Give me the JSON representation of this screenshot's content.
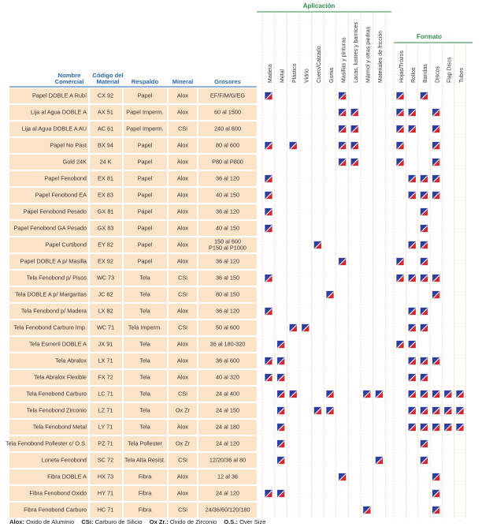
{
  "table": {
    "groups": {
      "aplicacion": "Aplicación",
      "formato": "Formato"
    },
    "headers": [
      [
        "Nombre",
        "Comercial"
      ],
      [
        "Código del",
        "Material"
      ],
      [
        "Respaldo"
      ],
      [
        "Mineral"
      ],
      [
        "Grosores"
      ]
    ],
    "aplicacion_columns": [
      "Madera",
      "Metal",
      "Plástico",
      "Vidrio",
      "Cuero/Calzado",
      "Goma",
      "Masillas y pinturas",
      "Lacas, lustres y barnices",
      "Mármol y otras piedras",
      "Materiales de fricción"
    ],
    "formato_columns": [
      "Hojas/Trozos",
      "Rollos",
      "Bandas",
      "Discos",
      "Flap Discs",
      "Tubos"
    ],
    "rows": [
      {
        "nombre": "Papel DOBLE A Rubí",
        "codigo": "CX 92",
        "respaldo": "Papel",
        "mineral": "Alox",
        "grosores": "EF/F/M/G/EG",
        "aplicacion": [
          true,
          false,
          false,
          false,
          false,
          false,
          true,
          false,
          false,
          false
        ],
        "formato": [
          true,
          false,
          true,
          false,
          false,
          false
        ]
      },
      {
        "nombre": "Lija al Agua DOBLE A",
        "codigo": "AX 51",
        "respaldo": "Papel Imperm.",
        "mineral": "Alox",
        "grosores": "60 al 1500",
        "aplicacion": [
          false,
          false,
          false,
          false,
          false,
          false,
          true,
          true,
          false,
          false
        ],
        "formato": [
          true,
          true,
          false,
          true,
          false,
          false
        ]
      },
      {
        "nombre": "Lija al Agua DOBLE A AU",
        "codigo": "AC 61",
        "respaldo": "Papel Imperm.",
        "mineral": "CSi",
        "grosores": "240 al 600",
        "aplicacion": [
          false,
          false,
          false,
          false,
          false,
          false,
          true,
          true,
          false,
          false
        ],
        "formato": [
          true,
          true,
          false,
          true,
          false,
          false
        ]
      },
      {
        "nombre": "Papel No Past",
        "codigo": "BX 94",
        "respaldo": "Papel",
        "mineral": "Alox",
        "grosores": "80 al 600",
        "aplicacion": [
          true,
          false,
          true,
          false,
          false,
          false,
          true,
          true,
          false,
          false
        ],
        "formato": [
          true,
          false,
          false,
          true,
          false,
          false
        ]
      },
      {
        "nombre": "Gold 24K",
        "codigo": "24 K",
        "respaldo": "Papel",
        "mineral": "Alox",
        "grosores": "P80 al P800",
        "aplicacion": [
          false,
          false,
          false,
          false,
          false,
          false,
          true,
          true,
          false,
          false
        ],
        "formato": [
          true,
          false,
          false,
          true,
          false,
          false
        ]
      },
      {
        "nombre": "Papel Fenobond",
        "codigo": "EX 81",
        "respaldo": "Papel",
        "mineral": "Alox",
        "grosores": "36 al 120",
        "aplicacion": [
          true,
          false,
          false,
          false,
          false,
          false,
          false,
          false,
          false,
          false
        ],
        "formato": [
          false,
          true,
          true,
          true,
          false,
          false
        ]
      },
      {
        "nombre": "Papel Fenobond EA",
        "codigo": "EX 83",
        "respaldo": "Papel",
        "mineral": "Alox",
        "grosores": "40 al 150",
        "aplicacion": [
          true,
          false,
          false,
          false,
          false,
          false,
          false,
          false,
          false,
          false
        ],
        "formato": [
          false,
          true,
          true,
          true,
          false,
          false
        ]
      },
      {
        "nombre": "Papel Fenobond Pesado",
        "codigo": "GX 81",
        "respaldo": "Papel",
        "mineral": "Alox",
        "grosores": "36 al 120",
        "aplicacion": [
          true,
          false,
          false,
          false,
          false,
          false,
          false,
          false,
          false,
          false
        ],
        "formato": [
          false,
          false,
          true,
          false,
          false,
          false
        ]
      },
      {
        "nombre": "Papel Fenobond GA Pesado",
        "codigo": "GX 83",
        "respaldo": "Papel",
        "mineral": "Alox",
        "grosores": "40 al 150",
        "aplicacion": [
          true,
          false,
          false,
          false,
          false,
          false,
          false,
          false,
          false,
          false
        ],
        "formato": [
          false,
          false,
          true,
          false,
          false,
          false
        ]
      },
      {
        "nombre": "Papel Curtibond",
        "codigo": "EY 82",
        "respaldo": "Papel",
        "mineral": "Alox",
        "grosores": [
          "150 al 600",
          "P150 al P1000"
        ],
        "aplicacion": [
          false,
          false,
          false,
          false,
          true,
          false,
          false,
          false,
          false,
          false
        ],
        "formato": [
          false,
          true,
          true,
          false,
          false,
          false
        ]
      },
      {
        "nombre": "Papel DOBLE A p/ Masilla",
        "codigo": "EX 92",
        "respaldo": "Papel",
        "mineral": "Alox",
        "grosores": "36 al 120",
        "aplicacion": [
          false,
          false,
          false,
          false,
          false,
          false,
          true,
          false,
          false,
          false
        ],
        "formato": [
          true,
          false,
          true,
          false,
          false,
          false
        ]
      },
      {
        "nombre": "Tela Fenobond p/ Pisos",
        "codigo": "WC 73",
        "respaldo": "Tela",
        "mineral": "CSi",
        "grosores": "36 al 150",
        "aplicacion": [
          true,
          false,
          false,
          false,
          false,
          false,
          false,
          false,
          false,
          false
        ],
        "formato": [
          true,
          true,
          true,
          true,
          false,
          false
        ]
      },
      {
        "nombre": "Tela DOBLE A p/ Margaritas",
        "codigo": "JC 82",
        "respaldo": "Tela",
        "mineral": "CSi",
        "grosores": "80 al 150",
        "aplicacion": [
          false,
          false,
          false,
          false,
          false,
          true,
          false,
          false,
          false,
          false
        ],
        "formato": [
          false,
          false,
          false,
          true,
          false,
          false
        ]
      },
      {
        "nombre": "Tela Fenobond p/ Madera",
        "codigo": "LX 82",
        "respaldo": "Tela",
        "mineral": "Alox",
        "grosores": "36 al 120",
        "aplicacion": [
          true,
          false,
          false,
          false,
          false,
          false,
          false,
          false,
          false,
          false
        ],
        "formato": [
          false,
          true,
          true,
          false,
          false,
          false
        ]
      },
      {
        "nombre": "Tela Fenobond Carburo Imp.",
        "codigo": "WC 71",
        "respaldo": "Tela Imperm.",
        "mineral": "CSi",
        "grosores": "50 al 600",
        "aplicacion": [
          false,
          false,
          true,
          true,
          false,
          false,
          false,
          false,
          false,
          false
        ],
        "formato": [
          false,
          true,
          true,
          false,
          false,
          false
        ]
      },
      {
        "nombre": "Tela Esmeril DOBLE A",
        "codigo": "JX 91",
        "respaldo": "Tela",
        "mineral": "Alox",
        "grosores": "36 al 180-320",
        "aplicacion": [
          false,
          true,
          false,
          false,
          false,
          false,
          false,
          false,
          false,
          false
        ],
        "formato": [
          true,
          true,
          false,
          false,
          false,
          false
        ]
      },
      {
        "nombre": "Tela Abralox",
        "codigo": "LX 71",
        "respaldo": "Tela",
        "mineral": "Alox",
        "grosores": "36 al 600",
        "aplicacion": [
          true,
          true,
          false,
          false,
          false,
          false,
          false,
          false,
          false,
          false
        ],
        "formato": [
          false,
          true,
          true,
          true,
          false,
          false
        ]
      },
      {
        "nombre": "Tela Abralox Flexible",
        "codigo": "FX 72",
        "respaldo": "Tela",
        "mineral": "Alox",
        "grosores": "40 al 320",
        "aplicacion": [
          true,
          true,
          false,
          false,
          false,
          false,
          false,
          false,
          false,
          false
        ],
        "formato": [
          false,
          true,
          true,
          false,
          false,
          false
        ]
      },
      {
        "nombre": "Tela Fenobond Carburo",
        "codigo": "LC 71",
        "respaldo": "Tela",
        "mineral": "CSi",
        "grosores": "24 al 400",
        "aplicacion": [
          false,
          true,
          true,
          false,
          false,
          true,
          false,
          false,
          true,
          true
        ],
        "formato": [
          false,
          true,
          true,
          true,
          true,
          true
        ]
      },
      {
        "nombre": "Tela Fenobond Zirconio",
        "codigo": "LZ 71",
        "respaldo": "Tela",
        "mineral": "Ox Zr",
        "grosores": "24 al 150",
        "aplicacion": [
          false,
          true,
          false,
          false,
          true,
          true,
          false,
          false,
          false,
          false
        ],
        "formato": [
          false,
          true,
          true,
          true,
          true,
          true
        ]
      },
      {
        "nombre": "Tela Fenobond Metal",
        "codigo": "LY 71",
        "respaldo": "Tela",
        "mineral": "Alox",
        "grosores": "24 al 180",
        "aplicacion": [
          false,
          true,
          false,
          false,
          false,
          false,
          false,
          false,
          false,
          false
        ],
        "formato": [
          false,
          true,
          true,
          true,
          true,
          true
        ]
      },
      {
        "nombre": "Tela Fenobond Pollester c/ O.S.",
        "codigo": "PZ 71",
        "respaldo": "Tela Pollester",
        "mineral": "Ox Zr",
        "grosores": "24 al 120",
        "aplicacion": [
          false,
          true,
          false,
          false,
          false,
          false,
          false,
          false,
          false,
          false
        ],
        "formato": [
          false,
          false,
          true,
          false,
          false,
          false
        ]
      },
      {
        "nombre": "Loneta Fenobond",
        "codigo": "SC 72",
        "respaldo": "Tela Alta Resist.",
        "mineral": "CSi",
        "grosores": "12/20/36 al 80",
        "aplicacion": [
          false,
          true,
          false,
          false,
          false,
          false,
          false,
          false,
          false,
          true
        ],
        "formato": [
          false,
          false,
          true,
          false,
          false,
          false
        ]
      },
      {
        "nombre": "Fibra DOBLE A",
        "codigo": "HX 73",
        "respaldo": "Fibra",
        "mineral": "Alox",
        "grosores": "12 al 36",
        "aplicacion": [
          false,
          false,
          false,
          false,
          false,
          false,
          true,
          false,
          false,
          false
        ],
        "formato": [
          false,
          false,
          false,
          true,
          false,
          false
        ]
      },
      {
        "nombre": "Fibra Fenobond Oxido",
        "codigo": "HY 71",
        "respaldo": "Fibra",
        "mineral": "Alox",
        "grosores": "24 al 120",
        "aplicacion": [
          true,
          true,
          false,
          false,
          false,
          false,
          false,
          false,
          false,
          false
        ],
        "formato": [
          false,
          false,
          false,
          true,
          false,
          false
        ]
      },
      {
        "nombre": "Fibra Fenobond Carburo",
        "codigo": "HC 71",
        "respaldo": "Fibra",
        "mineral": "CSi",
        "grosores": "24/36/60/120/180",
        "aplicacion": [
          false,
          false,
          false,
          false,
          false,
          false,
          false,
          false,
          true,
          false
        ],
        "formato": [
          false,
          false,
          false,
          true,
          false,
          false
        ]
      }
    ]
  },
  "footer": [
    {
      "abbr": "Alox:",
      "text": "Oxido de Aluminio"
    },
    {
      "abbr": "CSi:",
      "text": "Carburo de Silicio"
    },
    {
      "abbr": "Ox Zr.:",
      "text": "Oxido de Zirconio"
    },
    {
      "abbr": "O.S.:",
      "text": "Over Size"
    }
  ]
}
